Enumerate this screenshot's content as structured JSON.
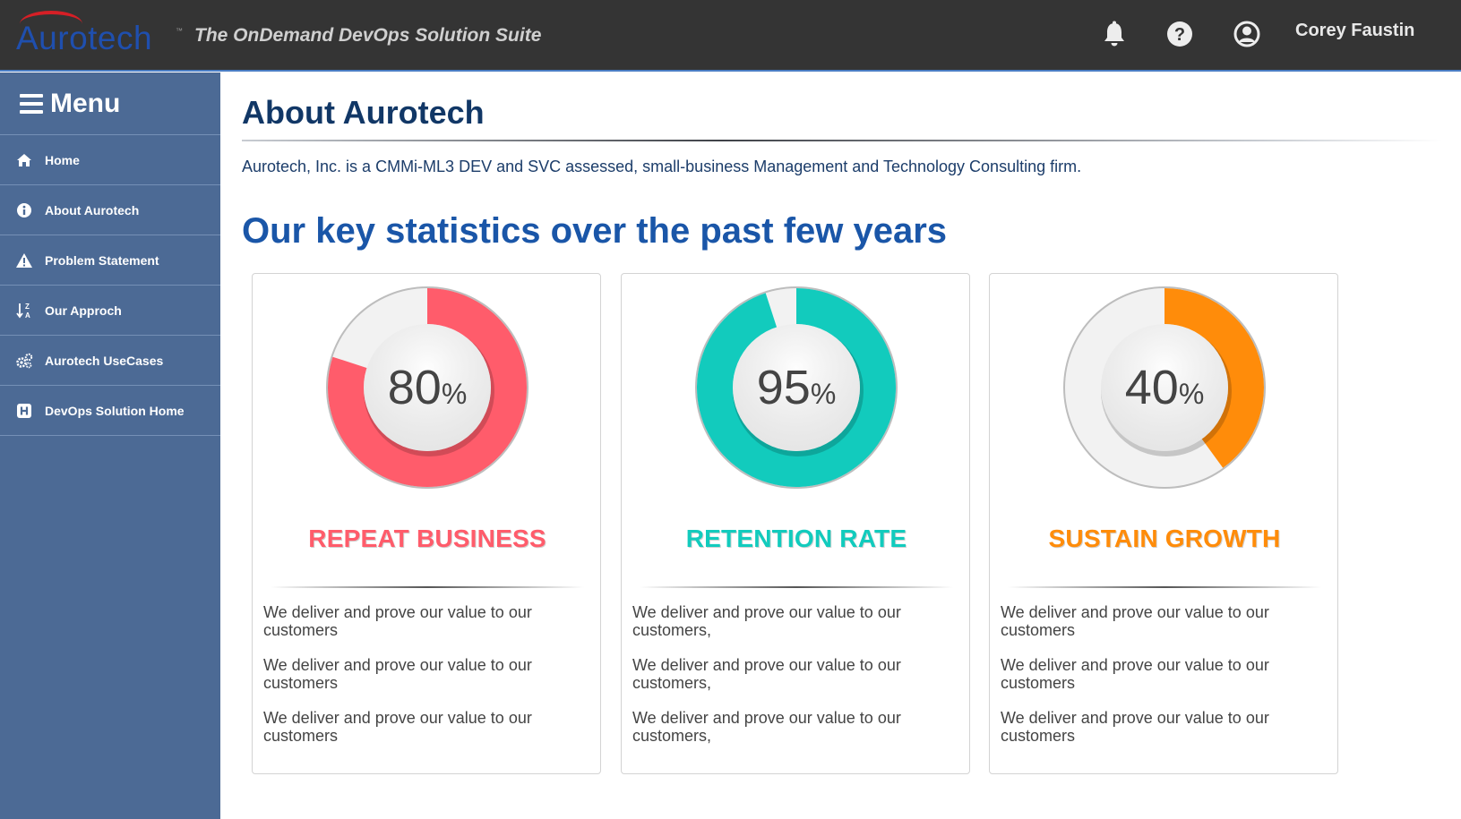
{
  "header": {
    "logo_text": "Aurotech",
    "tagline": "The OnDemand DevOps Solution Suite",
    "username": "Corey Faustin",
    "icons": [
      "bell-icon",
      "help-icon",
      "user-icon"
    ]
  },
  "sidebar": {
    "title": "Menu",
    "items": [
      {
        "label": "Home",
        "icon": "home-icon"
      },
      {
        "label": "About Aurotech",
        "icon": "info-icon"
      },
      {
        "label": "Problem Statement",
        "icon": "warning-icon"
      },
      {
        "label": "Our Approch",
        "icon": "sort-icon"
      },
      {
        "label": "Aurotech UseCases",
        "icon": "gears-icon"
      },
      {
        "label": "DevOps Solution Home",
        "icon": "h-square-icon"
      }
    ]
  },
  "main": {
    "title": "About Aurotech",
    "intro": "Aurotech, Inc. is a CMMi-ML3 DEV and SVC assessed, small-business Management and Technology Consulting firm.",
    "section_title": "Our key statistics over the past few years",
    "stats": [
      {
        "value": 80,
        "value_text": "80",
        "unit": "%",
        "label": "REPEAT BUSINESS",
        "color": "#ff5c6b",
        "descriptions": [
          "We deliver and prove our value to our customers",
          "We deliver and prove our value to our customers",
          "We deliver and prove our value to our customers"
        ]
      },
      {
        "value": 95,
        "value_text": "95",
        "unit": "%",
        "label": "RETENTION RATE",
        "color": "#12cbbd",
        "descriptions": [
          "We deliver and prove our value to our customers,",
          "We deliver and prove our value to our customers,",
          "We deliver and prove our value to our customers,"
        ]
      },
      {
        "value": 40,
        "value_text": "40",
        "unit": "%",
        "label": "SUSTAIN GROWTH",
        "color": "#ff8c0a",
        "descriptions": [
          "We deliver and prove our value to our customers",
          "We deliver and prove our value to our customers",
          "We deliver and prove our value to our customers"
        ]
      }
    ]
  }
}
